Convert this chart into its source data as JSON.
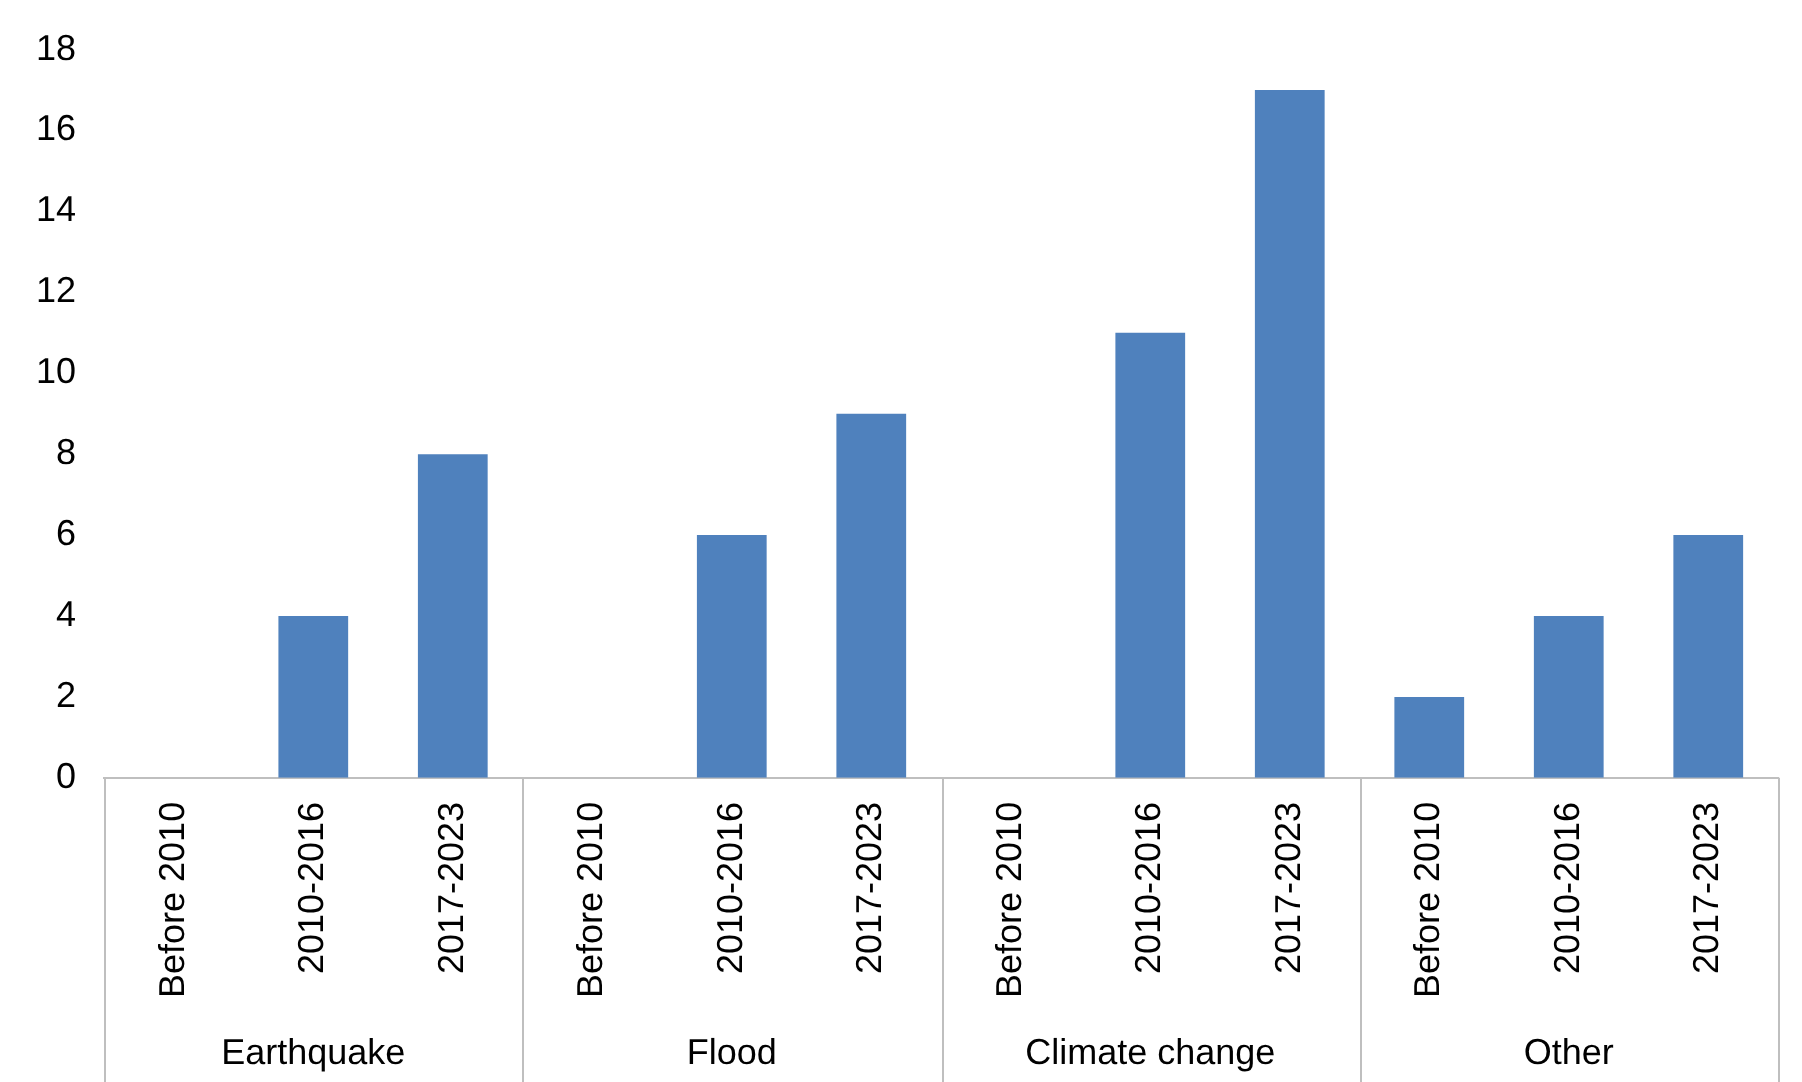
{
  "chart_data": {
    "type": "bar",
    "categories": [
      "Before 2010",
      "2010-2016",
      "2017-2023",
      "Before 2010",
      "2010-2016",
      "2017-2023",
      "Before 2010",
      "2010-2016",
      "2017-2023",
      "Before 2010",
      "2010-2016",
      "2017-2023"
    ],
    "values": [
      0,
      4,
      8,
      0,
      6,
      9,
      0,
      11,
      17,
      2,
      4,
      6
    ],
    "color": "#4f81bd",
    "ylim": [
      0,
      18
    ],
    "yticks": [
      0,
      2,
      4,
      6,
      8,
      10,
      12,
      14,
      16,
      18
    ],
    "grid": false,
    "legend": false,
    "annotations": [
      "Earthquake",
      "Flood",
      "Climate change",
      "Other"
    ]
  }
}
